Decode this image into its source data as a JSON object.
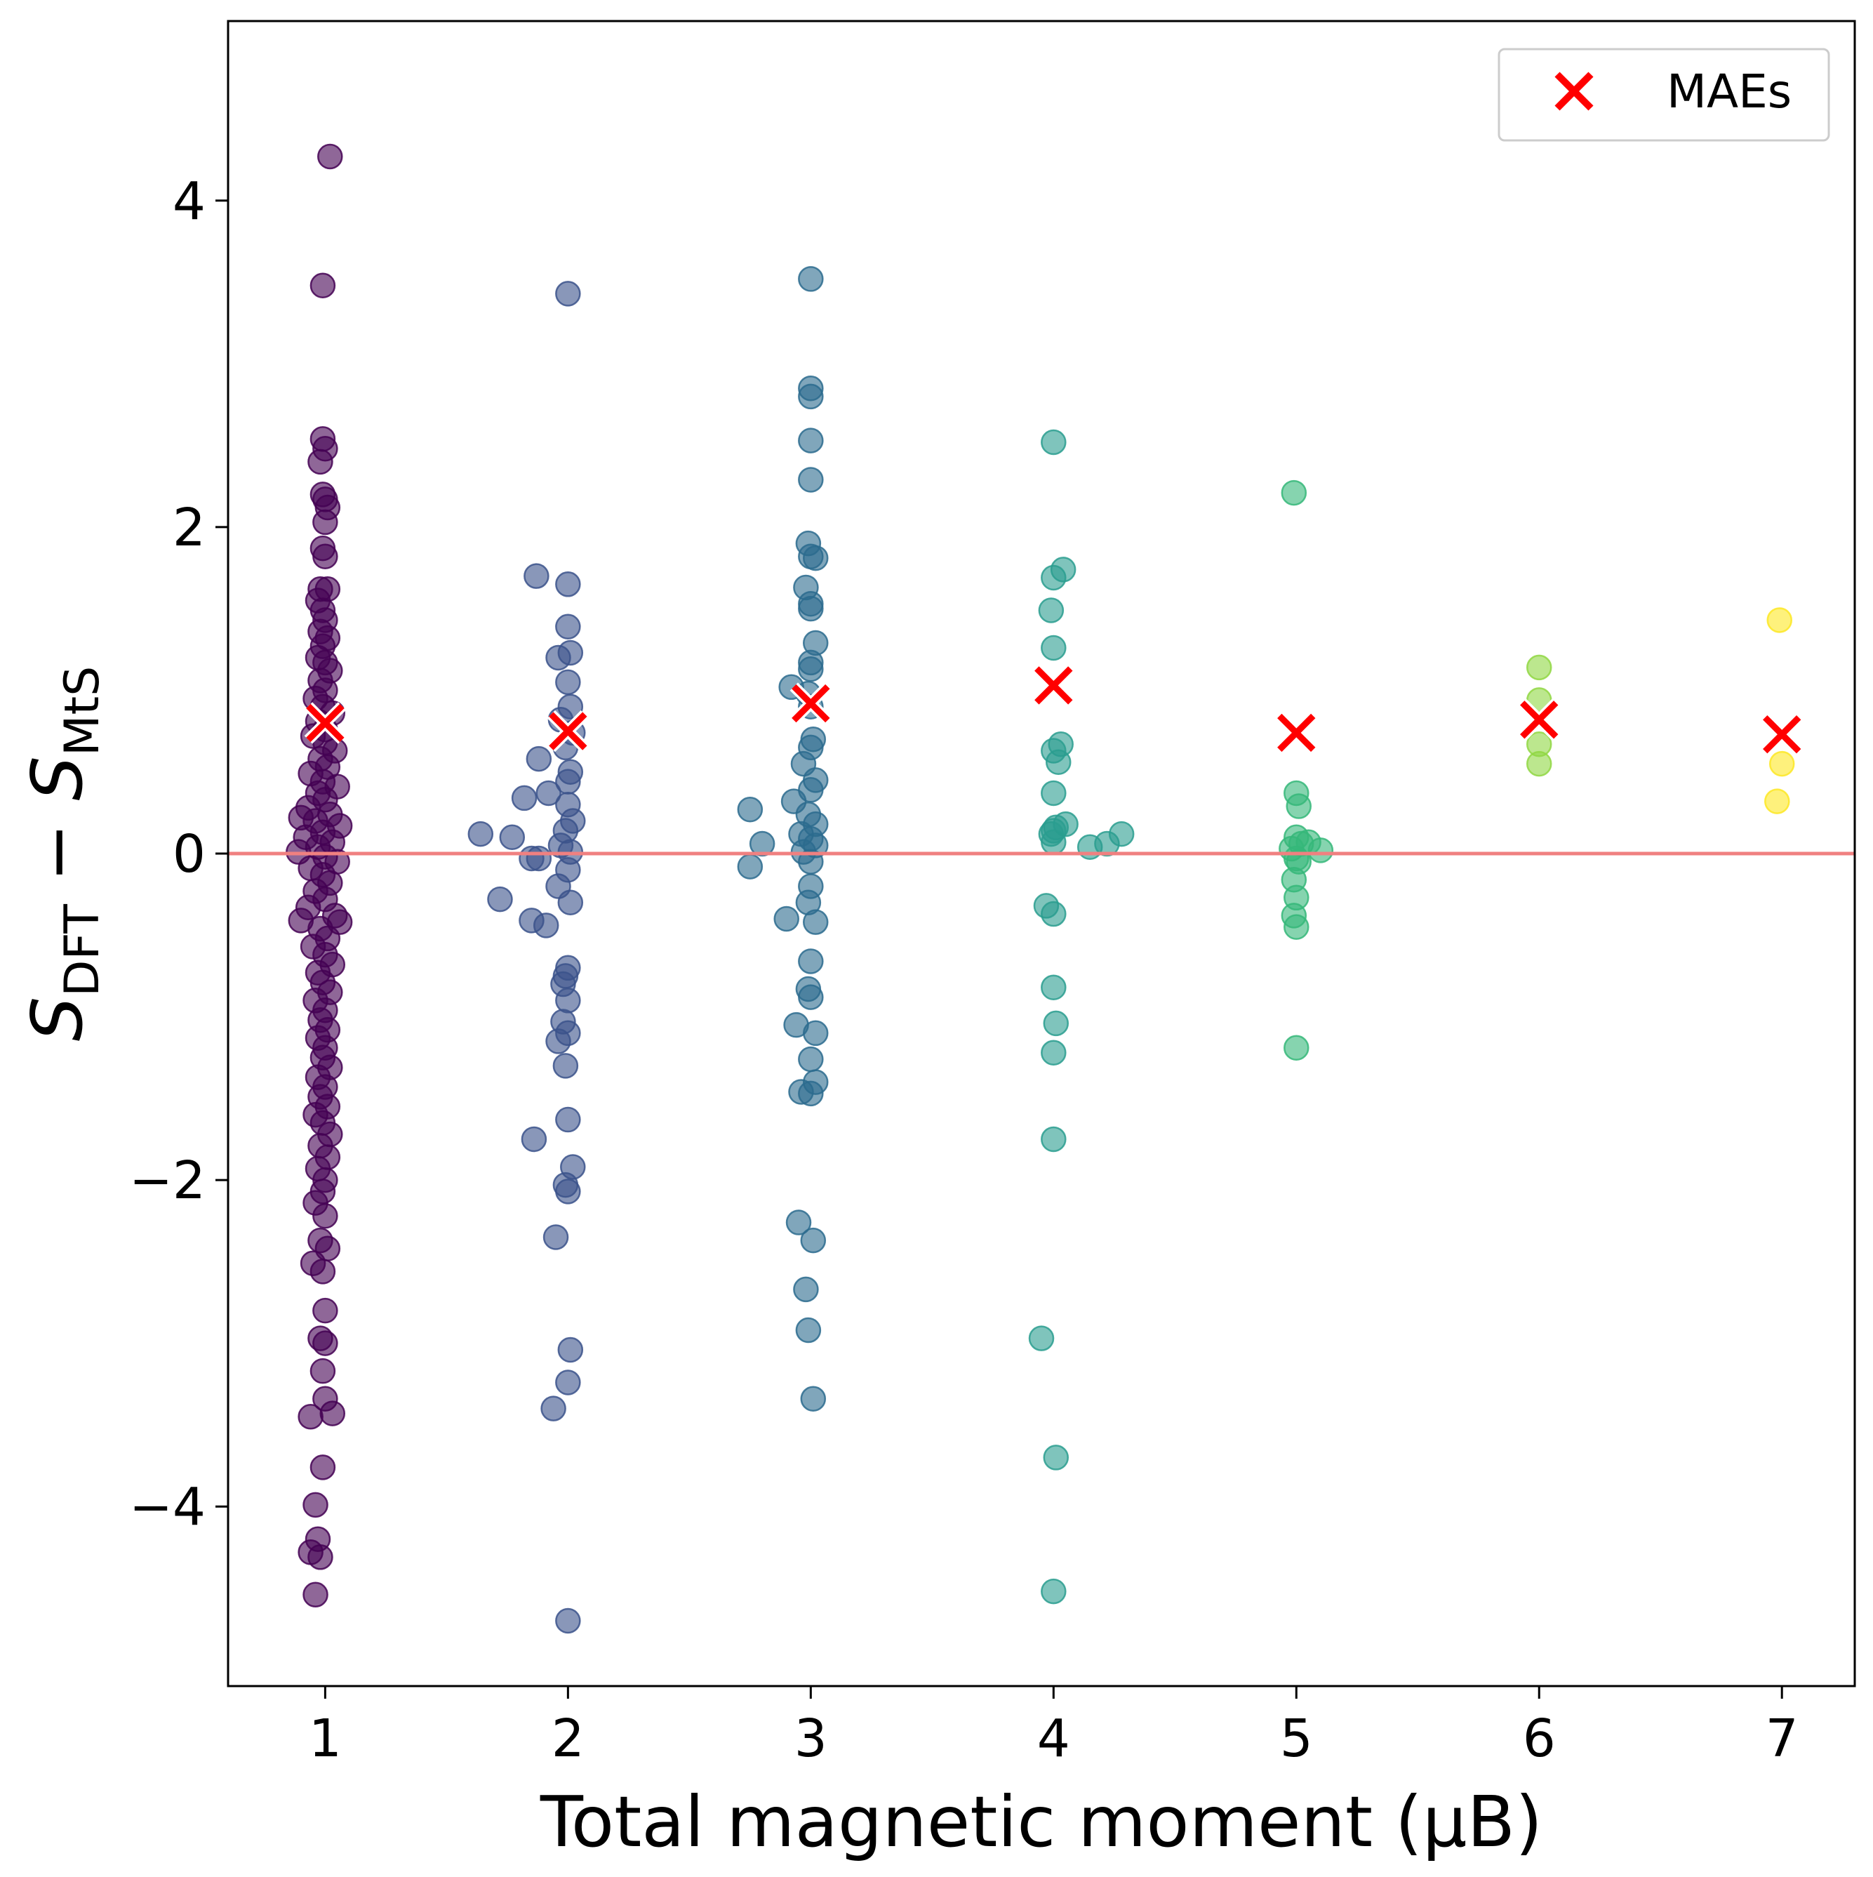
{
  "chart_data": {
    "type": "scatter",
    "title": "",
    "xlabel": "Total magnetic moment (µB)",
    "ylabel": {
      "main": "S",
      "sub1": "DFT",
      "minus": " − ",
      "main2": "S",
      "sub2": "MtS"
    },
    "xlim": [
      0.6,
      7.3
    ],
    "ylim": [
      -5.1,
      5.1
    ],
    "x_ticks": [
      1,
      2,
      3,
      4,
      5,
      6,
      7
    ],
    "y_ticks": [
      -4,
      -2,
      0,
      2,
      4
    ],
    "y_tick_labels": [
      "−4",
      "−2",
      "0",
      "2",
      "4"
    ],
    "reference_line": {
      "y": 0,
      "color": "#f08080"
    },
    "legend": {
      "position": "top-right",
      "entries": [
        {
          "label": "MAEs",
          "marker": "x",
          "color": "#ff0000"
        }
      ]
    },
    "groups": [
      {
        "moment": 1,
        "color": "#440154",
        "points": [
          [
            1.02,
            4.27
          ],
          [
            0.99,
            3.48
          ],
          [
            0.99,
            2.54
          ],
          [
            1.0,
            2.48
          ],
          [
            0.98,
            2.4
          ],
          [
            0.99,
            2.2
          ],
          [
            1.0,
            2.17
          ],
          [
            1.01,
            2.12
          ],
          [
            1.0,
            2.03
          ],
          [
            0.99,
            1.87
          ],
          [
            1.0,
            1.82
          ],
          [
            0.98,
            1.62
          ],
          [
            1.01,
            1.62
          ],
          [
            0.97,
            1.55
          ],
          [
            0.99,
            1.49
          ],
          [
            1.0,
            1.43
          ],
          [
            0.98,
            1.36
          ],
          [
            1.01,
            1.32
          ],
          [
            0.99,
            1.27
          ],
          [
            0.97,
            1.2
          ],
          [
            1.0,
            1.17
          ],
          [
            1.02,
            1.12
          ],
          [
            0.98,
            1.06
          ],
          [
            1.0,
            1.0
          ],
          [
            0.96,
            0.95
          ],
          [
            0.99,
            0.9
          ],
          [
            1.03,
            0.86
          ],
          [
            0.97,
            0.81
          ],
          [
            1.0,
            0.76
          ],
          [
            0.95,
            0.72
          ],
          [
            1.0,
            0.68
          ],
          [
            1.04,
            0.63
          ],
          [
            0.98,
            0.58
          ],
          [
            1.01,
            0.53
          ],
          [
            0.94,
            0.49
          ],
          [
            0.99,
            0.44
          ],
          [
            1.05,
            0.41
          ],
          [
            0.97,
            0.37
          ],
          [
            1.0,
            0.33
          ],
          [
            0.93,
            0.28
          ],
          [
            1.02,
            0.24
          ],
          [
            0.9,
            0.22
          ],
          [
            0.96,
            0.2
          ],
          [
            1.06,
            0.17
          ],
          [
            0.99,
            0.13
          ],
          [
            0.92,
            0.1
          ],
          [
            1.03,
            0.07
          ],
          [
            0.97,
            0.04
          ],
          [
            0.89,
            0.01
          ],
          [
            1.0,
            -0.02
          ],
          [
            1.05,
            -0.05
          ],
          [
            0.94,
            -0.09
          ],
          [
            0.99,
            -0.13
          ],
          [
            1.02,
            -0.18
          ],
          [
            0.96,
            -0.23
          ],
          [
            1.0,
            -0.28
          ],
          [
            0.93,
            -0.33
          ],
          [
            1.04,
            -0.38
          ],
          [
            0.9,
            -0.41
          ],
          [
            1.06,
            -0.42
          ],
          [
            0.98,
            -0.46
          ],
          [
            1.01,
            -0.52
          ],
          [
            0.95,
            -0.57
          ],
          [
            1.0,
            -0.62
          ],
          [
            1.03,
            -0.68
          ],
          [
            0.97,
            -0.73
          ],
          [
            0.99,
            -0.79
          ],
          [
            1.02,
            -0.85
          ],
          [
            0.96,
            -0.9
          ],
          [
            1.0,
            -0.96
          ],
          [
            0.98,
            -1.02
          ],
          [
            1.01,
            -1.08
          ],
          [
            0.97,
            -1.13
          ],
          [
            1.0,
            -1.19
          ],
          [
            0.99,
            -1.25
          ],
          [
            1.02,
            -1.31
          ],
          [
            0.97,
            -1.37
          ],
          [
            1.0,
            -1.43
          ],
          [
            0.98,
            -1.49
          ],
          [
            1.01,
            -1.55
          ],
          [
            0.96,
            -1.6
          ],
          [
            0.99,
            -1.65
          ],
          [
            1.02,
            -1.72
          ],
          [
            0.98,
            -1.79
          ],
          [
            1.01,
            -1.86
          ],
          [
            0.97,
            -1.93
          ],
          [
            1.0,
            -2.0
          ],
          [
            0.99,
            -2.07
          ],
          [
            0.96,
            -2.14
          ],
          [
            1.0,
            -2.22
          ],
          [
            0.98,
            -2.37
          ],
          [
            1.01,
            -2.42
          ],
          [
            0.95,
            -2.51
          ],
          [
            0.99,
            -2.56
          ],
          [
            1.0,
            -2.8
          ],
          [
            0.98,
            -2.97
          ],
          [
            1.0,
            -3.0
          ],
          [
            0.99,
            -3.17
          ],
          [
            1.0,
            -3.34
          ],
          [
            0.94,
            -3.45
          ],
          [
            1.03,
            -3.43
          ],
          [
            0.99,
            -3.76
          ],
          [
            0.96,
            -3.99
          ],
          [
            0.97,
            -4.2
          ],
          [
            0.94,
            -4.28
          ],
          [
            0.98,
            -4.31
          ],
          [
            0.96,
            -4.54
          ]
        ]
      },
      {
        "moment": 2,
        "color": "#3b528b",
        "points": [
          [
            2.0,
            3.43
          ],
          [
            1.87,
            1.7
          ],
          [
            2.0,
            1.65
          ],
          [
            2.0,
            1.39
          ],
          [
            2.01,
            1.23
          ],
          [
            1.96,
            1.2
          ],
          [
            2.0,
            1.05
          ],
          [
            2.01,
            0.9
          ],
          [
            1.97,
            0.82
          ],
          [
            2.02,
            0.74
          ],
          [
            1.99,
            0.65
          ],
          [
            1.88,
            0.58
          ],
          [
            2.01,
            0.5
          ],
          [
            2.0,
            0.44
          ],
          [
            1.92,
            0.37
          ],
          [
            2.0,
            0.3
          ],
          [
            1.82,
            0.34
          ],
          [
            2.02,
            0.2
          ],
          [
            1.99,
            0.14
          ],
          [
            1.64,
            0.12
          ],
          [
            1.77,
            0.1
          ],
          [
            1.97,
            0.05
          ],
          [
            2.01,
            0.01
          ],
          [
            1.85,
            -0.03
          ],
          [
            1.88,
            -0.03
          ],
          [
            2.0,
            -0.1
          ],
          [
            1.96,
            -0.2
          ],
          [
            2.01,
            -0.3
          ],
          [
            1.72,
            -0.28
          ],
          [
            1.85,
            -0.41
          ],
          [
            1.91,
            -0.44
          ],
          [
            2.0,
            -0.7
          ],
          [
            1.99,
            -0.75
          ],
          [
            1.98,
            -0.8
          ],
          [
            2.0,
            -0.9
          ],
          [
            1.98,
            -1.03
          ],
          [
            2.0,
            -1.1
          ],
          [
            1.96,
            -1.15
          ],
          [
            1.99,
            -1.3
          ],
          [
            2.0,
            -1.63
          ],
          [
            1.86,
            -1.75
          ],
          [
            2.02,
            -1.92
          ],
          [
            1.99,
            -2.03
          ],
          [
            2.0,
            -2.07
          ],
          [
            1.95,
            -2.35
          ],
          [
            2.01,
            -3.04
          ],
          [
            2.0,
            -3.24
          ],
          [
            1.94,
            -3.4
          ],
          [
            2.0,
            -4.7
          ]
        ]
      },
      {
        "moment": 3,
        "color": "#21918c",
        "tone": "#2c6b8e",
        "points": [
          [
            3.0,
            3.52
          ],
          [
            3.0,
            2.85
          ],
          [
            3.0,
            2.8
          ],
          [
            3.0,
            2.53
          ],
          [
            3.0,
            2.29
          ],
          [
            2.99,
            1.9
          ],
          [
            3.0,
            1.82
          ],
          [
            3.02,
            1.81
          ],
          [
            2.98,
            1.63
          ],
          [
            3.0,
            1.53
          ],
          [
            3.0,
            1.5
          ],
          [
            3.02,
            1.29
          ],
          [
            3.0,
            1.17
          ],
          [
            3.0,
            1.13
          ],
          [
            2.92,
            1.02
          ],
          [
            2.99,
            0.98
          ],
          [
            3.0,
            0.9
          ],
          [
            3.01,
            0.7
          ],
          [
            3.0,
            0.65
          ],
          [
            2.97,
            0.55
          ],
          [
            3.02,
            0.45
          ],
          [
            3.0,
            0.39
          ],
          [
            2.93,
            0.32
          ],
          [
            2.75,
            0.27
          ],
          [
            2.99,
            0.24
          ],
          [
            3.02,
            0.18
          ],
          [
            2.96,
            0.12
          ],
          [
            3.0,
            0.09
          ],
          [
            2.8,
            0.06
          ],
          [
            3.02,
            0.05
          ],
          [
            2.97,
            0.01
          ],
          [
            3.0,
            -0.05
          ],
          [
            2.75,
            -0.08
          ],
          [
            3.0,
            -0.2
          ],
          [
            2.99,
            -0.3
          ],
          [
            2.9,
            -0.4
          ],
          [
            3.02,
            -0.42
          ],
          [
            3.0,
            -0.66
          ],
          [
            2.99,
            -0.83
          ],
          [
            3.0,
            -0.88
          ],
          [
            2.94,
            -1.05
          ],
          [
            3.02,
            -1.1
          ],
          [
            3.0,
            -1.26
          ],
          [
            3.02,
            -1.4
          ],
          [
            2.96,
            -1.46
          ],
          [
            3.0,
            -1.47
          ],
          [
            2.95,
            -2.26
          ],
          [
            3.01,
            -2.37
          ],
          [
            2.98,
            -2.67
          ],
          [
            2.99,
            -2.92
          ],
          [
            3.01,
            -3.34
          ]
        ]
      },
      {
        "moment": 4,
        "color": "#2a9d8f",
        "points": [
          [
            4.0,
            2.52
          ],
          [
            4.04,
            1.74
          ],
          [
            4.0,
            1.69
          ],
          [
            3.99,
            1.49
          ],
          [
            4.0,
            1.26
          ],
          [
            4.03,
            0.67
          ],
          [
            4.0,
            0.63
          ],
          [
            4.02,
            0.56
          ],
          [
            4.0,
            0.37
          ],
          [
            4.05,
            0.18
          ],
          [
            4.01,
            0.16
          ],
          [
            4.0,
            0.14
          ],
          [
            3.99,
            0.12
          ],
          [
            4.0,
            0.07
          ],
          [
            4.15,
            0.04
          ],
          [
            4.22,
            0.06
          ],
          [
            4.28,
            0.12
          ],
          [
            3.97,
            -0.32
          ],
          [
            4.0,
            -0.37
          ],
          [
            4.0,
            -0.82
          ],
          [
            4.01,
            -1.04
          ],
          [
            4.0,
            -1.22
          ],
          [
            4.0,
            -1.75
          ],
          [
            3.95,
            -2.97
          ],
          [
            4.01,
            -3.7
          ],
          [
            4.0,
            -4.52
          ]
        ]
      },
      {
        "moment": 5,
        "color": "#35b779",
        "points": [
          [
            4.99,
            2.21
          ],
          [
            5.0,
            0.37
          ],
          [
            5.01,
            0.29
          ],
          [
            5.0,
            0.1
          ],
          [
            5.05,
            0.07
          ],
          [
            5.02,
            0.06
          ],
          [
            4.98,
            0.03
          ],
          [
            5.1,
            0.02
          ],
          [
            5.0,
            -0.03
          ],
          [
            5.01,
            -0.05
          ],
          [
            4.99,
            -0.16
          ],
          [
            5.0,
            -0.27
          ],
          [
            4.99,
            -0.38
          ],
          [
            5.0,
            -0.45
          ],
          [
            5.0,
            -1.19
          ]
        ]
      },
      {
        "moment": 6,
        "color": "#90d743",
        "points": [
          [
            6.0,
            1.14
          ],
          [
            6.0,
            0.94
          ],
          [
            6.0,
            0.67
          ],
          [
            6.0,
            0.55
          ]
        ]
      },
      {
        "moment": 7,
        "color": "#fde725",
        "points": [
          [
            6.99,
            1.43
          ],
          [
            7.0,
            0.55
          ],
          [
            6.98,
            0.32
          ]
        ]
      }
    ],
    "maes": [
      {
        "x": 1,
        "y": 0.8
      },
      {
        "x": 2,
        "y": 0.75
      },
      {
        "x": 3,
        "y": 0.92
      },
      {
        "x": 4,
        "y": 1.03
      },
      {
        "x": 5,
        "y": 0.74
      },
      {
        "x": 6,
        "y": 0.82
      },
      {
        "x": 7,
        "y": 0.73
      }
    ]
  }
}
